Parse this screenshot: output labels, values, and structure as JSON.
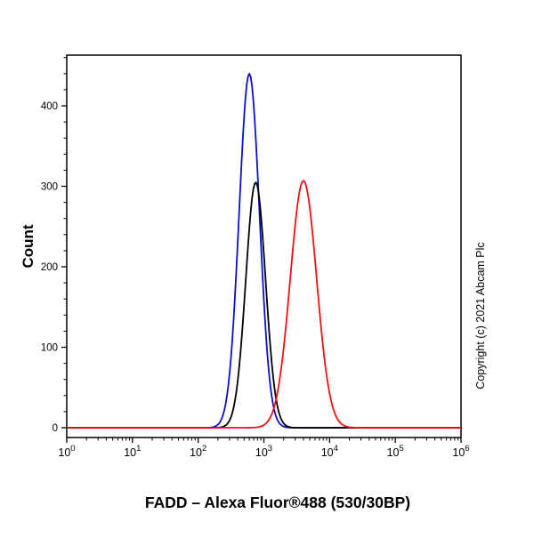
{
  "page": {
    "background": "#ffffff"
  },
  "chart_data": {
    "type": "line",
    "subtype": "flow-cytometry-histogram",
    "title": "FADD – Alexa Fluor®488 (530/30BP)",
    "ylabel": "Count",
    "xlabel": "",
    "copyright": "Copyright (c) 2021 Abcam Plc",
    "x_scale": "log10",
    "xlim": [
      1,
      1000000
    ],
    "x_decades": [
      0,
      6
    ],
    "ylim": [
      0,
      463
    ],
    "yticks": [
      0,
      100,
      200,
      300,
      400
    ],
    "y_minor_step": 20,
    "xtick_exponents": [
      0,
      1,
      2,
      3,
      4,
      5,
      6
    ],
    "grid": false,
    "legend": "none",
    "axis_color": "#000000",
    "series": [
      {
        "name": "blue",
        "color": "#0d0dcc",
        "peak_x": 600,
        "peak_count": 440,
        "sigma_decades": 0.155,
        "baseline_count": 0
      },
      {
        "name": "black",
        "color": "#000000",
        "peak_x": 750,
        "peak_count": 305,
        "sigma_decades": 0.15,
        "baseline_count": 0
      },
      {
        "name": "red",
        "color": "#ee1111",
        "peak_x": 4000,
        "peak_count": 307,
        "sigma_decades": 0.2,
        "baseline_count": 0
      }
    ]
  }
}
